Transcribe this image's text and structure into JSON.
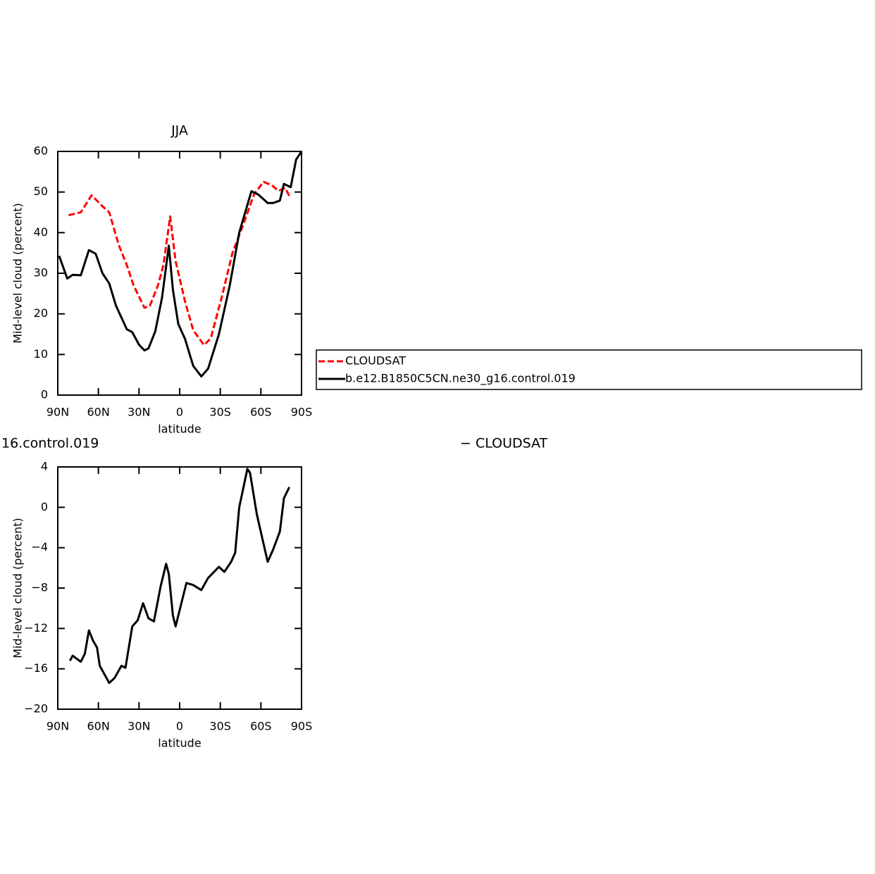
{
  "chart_data": [
    {
      "type": "line",
      "title": "JJA",
      "xlabel": "latitude",
      "ylabel": "Mid-level cloud (percent)",
      "xlim": [
        90,
        -90
      ],
      "ylim": [
        0,
        60
      ],
      "xticks": [
        {
          "value": 90,
          "label": "90N"
        },
        {
          "value": 60,
          "label": "60N"
        },
        {
          "value": 30,
          "label": "30N"
        },
        0,
        {
          "value": -30,
          "label": "30S"
        },
        {
          "value": -60,
          "label": "60S"
        },
        {
          "value": -90,
          "label": "90S"
        }
      ],
      "yticks": [
        0,
        10,
        20,
        30,
        40,
        50,
        60
      ],
      "legend": "right",
      "series": [
        {
          "name": "CLOUDSAT",
          "color": "#ff0000",
          "dash": true,
          "x": [
            82,
            73,
            65,
            57,
            52,
            45,
            39,
            34,
            26,
            22,
            16,
            12,
            7,
            3,
            -4,
            -10,
            -18,
            -23,
            -31,
            -39,
            -47,
            -55,
            -62,
            -68,
            -73,
            -78,
            -81
          ],
          "values": [
            44.3,
            45,
            49.2,
            46.5,
            45,
            37,
            32,
            27,
            21.5,
            22,
            27,
            32,
            44,
            33,
            23,
            16,
            12.3,
            14,
            24,
            35,
            42,
            49.5,
            52.5,
            51.7,
            50.3,
            51,
            49
          ]
        },
        {
          "name": "b.e12.B1850C5CN.ne30_g16.control.019",
          "color": "#000000",
          "dash": false,
          "x": [
            89,
            83,
            79,
            73,
            67,
            62,
            57,
            52,
            47,
            39,
            35,
            30,
            26,
            23,
            18,
            13,
            8,
            5,
            1,
            -4,
            -10,
            -16,
            -21,
            -29,
            -37,
            -44,
            -53,
            -58,
            -65,
            -69,
            -74,
            -77,
            -82,
            -86,
            -90
          ],
          "values": [
            34.3,
            28.7,
            29.6,
            29.5,
            35.7,
            34.8,
            30,
            27.5,
            22,
            16.2,
            15.5,
            12.4,
            11,
            11.5,
            15.7,
            24,
            36.8,
            26,
            17.5,
            13.8,
            7.2,
            4.6,
            6.5,
            15,
            27,
            40,
            50.2,
            49.4,
            47.3,
            47.3,
            47.9,
            52,
            51.2,
            58,
            60
          ]
        }
      ]
    },
    {
      "type": "line",
      "title_left": "16.control.019",
      "title_right": "− CLOUDSAT",
      "xlabel": "latitude",
      "ylabel": "Mid-level cloud (percent)",
      "xlim": [
        90,
        -90
      ],
      "ylim": [
        -20,
        4
      ],
      "xticks": [
        {
          "value": 90,
          "label": "90N"
        },
        {
          "value": 60,
          "label": "60N"
        },
        {
          "value": 30,
          "label": "30N"
        },
        0,
        {
          "value": -30,
          "label": "30S"
        },
        {
          "value": -60,
          "label": "60S"
        },
        {
          "value": -90,
          "label": "90S"
        }
      ],
      "yticks": [
        {
          "value": -20,
          "label": "−20"
        },
        {
          "value": -16,
          "label": "−16"
        },
        {
          "value": -12,
          "label": "−12"
        },
        {
          "value": -8,
          "label": "−8"
        },
        {
          "value": -4,
          "label": "−4"
        },
        0,
        4
      ],
      "series": [
        {
          "color": "#000000",
          "dash": false,
          "x": [
            81,
            79,
            73,
            70,
            67,
            64,
            61,
            59,
            52,
            48,
            43,
            40,
            35,
            31,
            27,
            23,
            19,
            14,
            10,
            8,
            5,
            3,
            -5,
            -10,
            -16,
            -21,
            -29,
            -33,
            -38,
            -41,
            -44,
            -50,
            -52,
            -57,
            -65,
            -69,
            -74,
            -77,
            -81
          ],
          "values": [
            -15.2,
            -14.7,
            -15.3,
            -14.5,
            -12.2,
            -13.2,
            -13.9,
            -15.7,
            -17.4,
            -16.9,
            -15.7,
            -15.9,
            -11.8,
            -11.2,
            -9.5,
            -11,
            -11.3,
            -7.8,
            -5.6,
            -6.6,
            -10.7,
            -11.8,
            -7.5,
            -7.7,
            -8.2,
            -7,
            -5.9,
            -6.4,
            -5.4,
            -4.5,
            0,
            3.8,
            3.4,
            -0.7,
            -5.4,
            -4.2,
            -2.4,
            0.9,
            2
          ]
        }
      ]
    }
  ]
}
